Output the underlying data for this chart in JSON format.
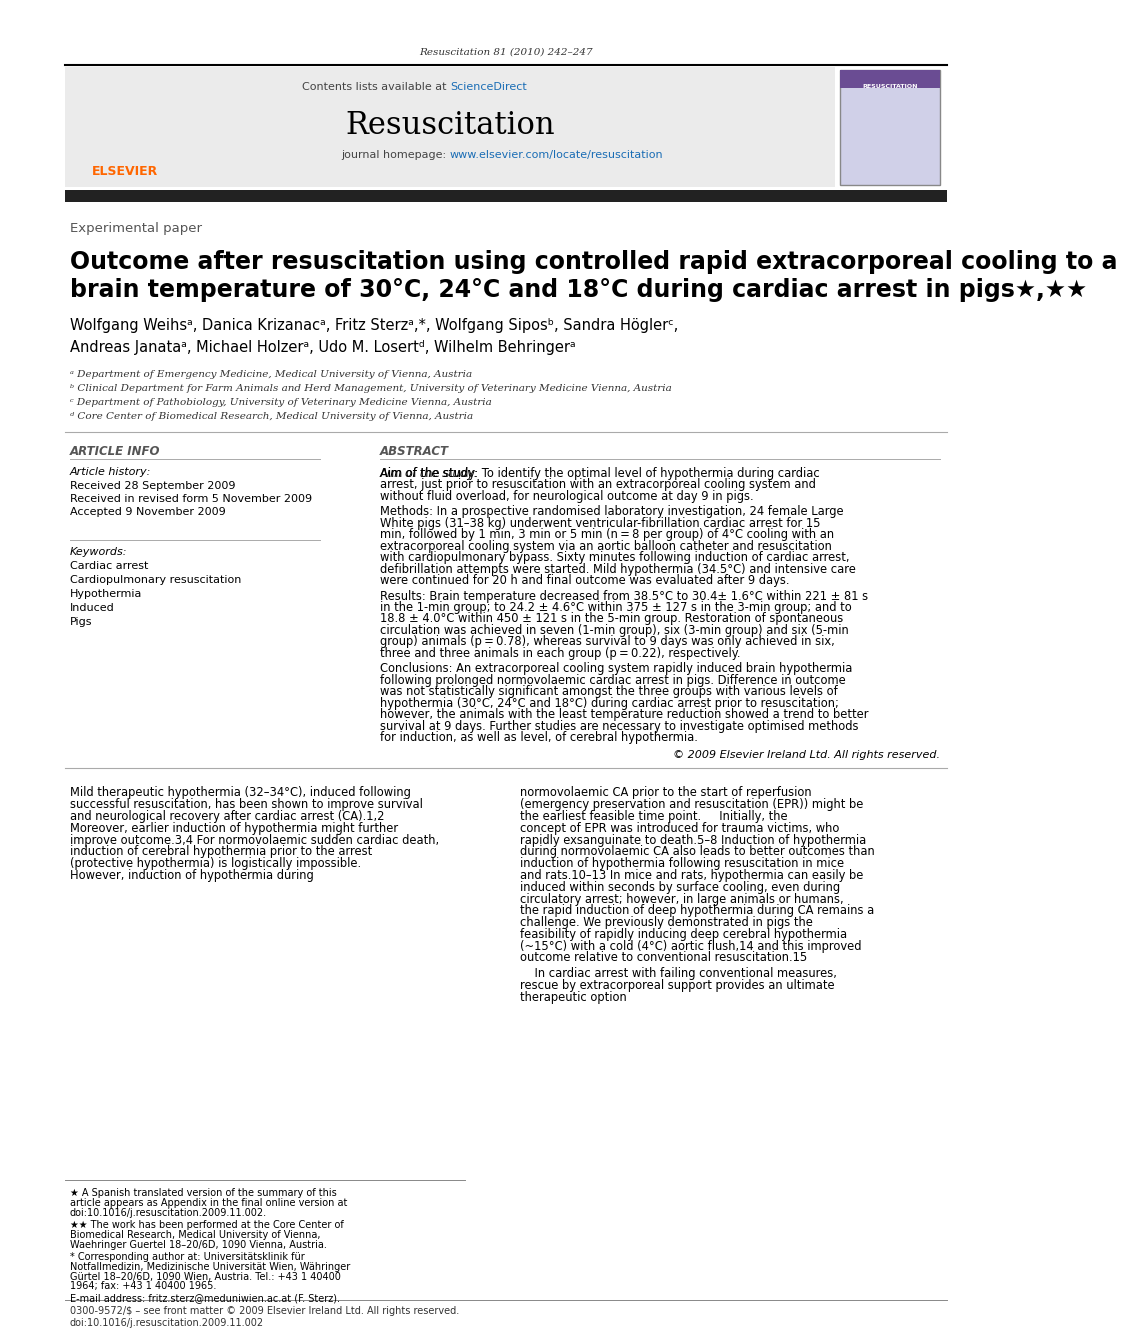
{
  "page_bg": "#ffffff",
  "header_journal_ref": "Resuscitation 81 (2010) 242–247",
  "journal_name": "Resuscitation",
  "contents_text": "Contents lists available at ScienceDirect",
  "journal_homepage": "journal homepage: www.elsevier.com/locate/resuscitation",
  "section_label": "Experimental paper",
  "title_line1": "Outcome after resuscitation using controlled rapid extracorporeal cooling to a",
  "title_line2": "brain temperature of 30°C, 24°C and 18°C during cardiac arrest in pigs★,★★",
  "authors": "Wolfgang Weihsᵃ, Danica Krizanacᵃ, Fritz Sterzᵃ,*, Wolfgang Siposᵇ, Sandra Höglerᶜ,\nAndreas Janataᵃ, Michael Holzerᵃ, Udo M. Losertᵈ, Wilhelm Behringerᵃ",
  "affil_a": "ᵃ Department of Emergency Medicine, Medical University of Vienna, Austria",
  "affil_b": "ᵇ Clinical Department for Farm Animals and Herd Management, University of Veterinary Medicine Vienna, Austria",
  "affil_c": "ᶜ Department of Pathobiology, University of Veterinary Medicine Vienna, Austria",
  "affil_d": "ᵈ Core Center of Biomedical Research, Medical University of Vienna, Austria",
  "article_info_title": "ARTICLE INFO",
  "abstract_title": "ABSTRACT",
  "article_history_label": "Article history:",
  "received1": "Received 28 September 2009",
  "received2": "Received in revised form 5 November 2009",
  "accepted": "Accepted 9 November 2009",
  "keywords_label": "Keywords:",
  "keywords": [
    "Cardiac arrest",
    "Cardiopulmonary resuscitation",
    "Hypothermia",
    "Induced",
    "Pigs"
  ],
  "abstract_aim": "Aim of the study: To identify the optimal level of hypothermia during cardiac arrest, just prior to resuscitation with an extracorporeal cooling system and without fluid overload, for neurological outcome at day 9 in pigs.",
  "abstract_methods": "Methods: In a prospective randomised laboratory investigation, 24 female Large White pigs (31–38 kg) underwent ventricular-fibrillation cardiac arrest for 15 min, followed by 1 min, 3 min or 5 min (n = 8 per group) of 4°C cooling with an extracorporeal cooling system via an aortic balloon catheter and resuscitation with cardiopulmonary bypass. Sixty minutes following induction of cardiac arrest, defibrillation attempts were started. Mild hypothermia (34.5°C) and intensive care were continued for 20 h and final outcome was evaluated after 9 days.",
  "abstract_results": "Results: Brain temperature decreased from 38.5°C to 30.4± 1.6°C within 221 ± 81 s in the 1-min group; to 24.2 ± 4.6°C within 375 ± 127 s in the 3-min group; and to 18.8 ± 4.0°C within 450 ± 121 s in the 5-min group. Restoration of spontaneous circulation was achieved in seven (1-min group), six (3-min group) and six (5-min group) animals (p = 0.78), whereas survival to 9 days was only achieved in six, three and three animals in each group (p = 0.22), respectively.",
  "abstract_conclusions": "Conclusions: An extracorporeal cooling system rapidly induced brain hypothermia following prolonged normovolaemic cardiac arrest in pigs. Difference in outcome was not statistically significant amongst the three groups with various levels of hypothermia (30°C, 24°C and 18°C) during cardiac arrest prior to resuscitation; however, the animals with the least temperature reduction showed a trend to better survival at 9 days. Further studies are necessary to investigate optimised methods for induction, as well as level, of cerebral hypothermia.",
  "copyright": "© 2009 Elsevier Ireland Ltd. All rights reserved.",
  "body_col1": "Mild therapeutic hypothermia (32–34°C), induced following successful resuscitation, has been shown to improve survival and neurological recovery after cardiac arrest (CA).1,2 Moreover, earlier induction of hypothermia might further improve outcome.3,4\nFor normovolaemic sudden cardiac death, induction of cerebral hypothermia prior to the arrest (protective hypothermia) is logistically impossible. However, induction of hypothermia during",
  "body_col2": "normovolaemic CA prior to the start of reperfusion (emergency preservation and resuscitation (EPR)) might be the earliest feasible time point.\n    Initially, the concept of EPR was introduced for trauma victims, who rapidly exsanguinate to death.5–8 Induction of hypothermia during normovolaemic CA also leads to better outcomes than induction of hypothermia following resuscitation in mice and rats.10–13 In mice and rats, hypothermia can easily be induced within seconds by surface cooling, even during circulatory arrest; however, in large animals or humans, the rapid induction of deep hypothermia during CA remains a challenge. We previously demonstrated in pigs the feasibility of rapidly inducing deep cerebral hypothermia (~15°C) with a cold (4°C) aortic flush,14 and this improved outcome relative to conventional resuscitation.15",
  "body_col2_cont": "    In cardiac arrest with failing conventional measures, rescue by extracorporeal support provides an ultimate therapeutic option",
  "footnote1": "★ A Spanish translated version of the summary of this article appears as Appendix in the final online version at doi:10.1016/j.resuscitation.2009.11.002.",
  "footnote2": "★★ The work has been performed at the Core Center of Biomedical Research, Medical University of Vienna, Waehringer Guertel 18–20/6D, 1090 Vienna, Austria.",
  "footnote3": "* Corresponding author at: Universitätsklinik für Notfallmedizin, Medizinische Universität Wien, Währinger Gürtel 18–20/6D, 1090 Wien, Austria.\nTel.: +43 1 40400 1964; fax: +43 1 40400 1965.",
  "footnote4": "E-mail address: fritz.sterz@meduniwien.ac.at (F. Sterz).",
  "footer_issn": "0300-9572/$ – see front matter © 2009 Elsevier Ireland Ltd. All rights reserved.",
  "footer_doi": "doi:10.1016/j.resuscitation.2009.11.002",
  "header_bg": "#e8e8e8",
  "elsevier_orange": "#FF6600",
  "sciencedirect_blue": "#1a6db5",
  "url_blue": "#1a6db5"
}
